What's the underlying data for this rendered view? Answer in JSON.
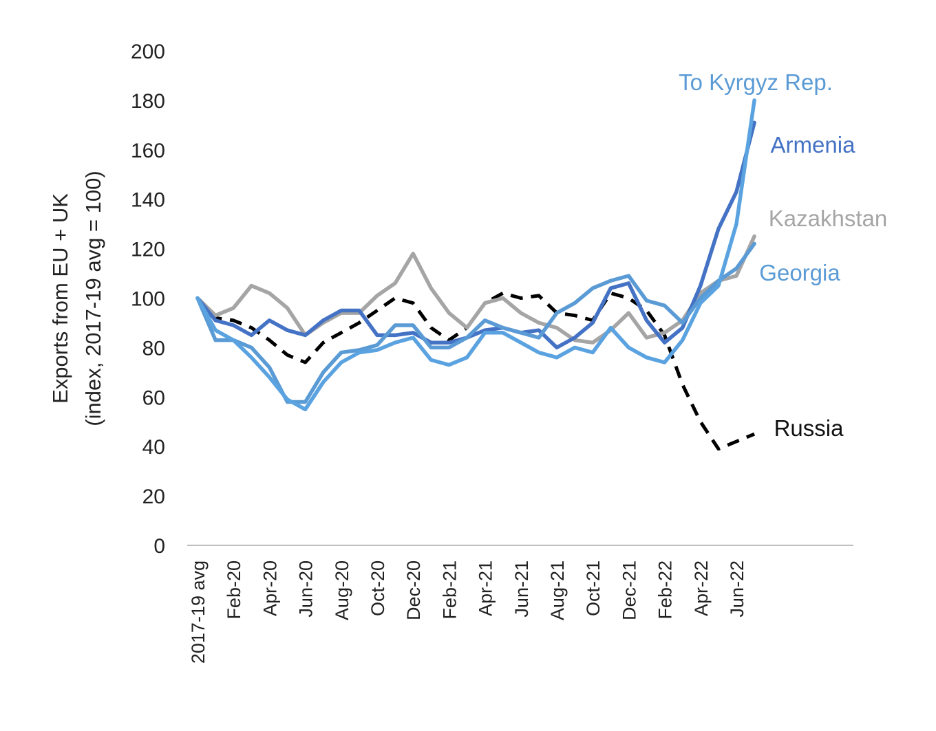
{
  "chart_data": {
    "type": "line",
    "ylabel_line1": "Exports from EU + UK",
    "ylabel_line2": "(index, 2017-19 avg = 100)",
    "ylim": [
      0,
      200
    ],
    "yticks": [
      0,
      20,
      40,
      60,
      80,
      100,
      120,
      140,
      160,
      180,
      200
    ],
    "categories": [
      "2017-19 avg",
      "Jan-20",
      "Feb-20",
      "Mar-20",
      "Apr-20",
      "May-20",
      "Jun-20",
      "Jul-20",
      "Aug-20",
      "Sep-20",
      "Oct-20",
      "Nov-20",
      "Dec-20",
      "Jan-21",
      "Feb-21",
      "Mar-21",
      "Apr-21",
      "May-21",
      "Jun-21",
      "Jul-21",
      "Aug-21",
      "Sep-21",
      "Oct-21",
      "Nov-21",
      "Dec-21",
      "Jan-22",
      "Feb-22",
      "Mar-22",
      "Apr-22",
      "May-22",
      "Jun-22",
      "Jul-22"
    ],
    "visible_tick_labels": [
      "2017-19 avg",
      "Feb-20",
      "Apr-20",
      "Jun-20",
      "Aug-20",
      "Oct-20",
      "Dec-20",
      "Feb-21",
      "Apr-21",
      "Jun-21",
      "Aug-21",
      "Oct-21",
      "Dec-21",
      "Feb-22",
      "Apr-22",
      "Jun-22"
    ],
    "grid": false,
    "legend": "inline labels at line ends",
    "series": [
      {
        "name": "Russia",
        "color": "#000000",
        "dashed": true,
        "values": [
          100,
          92,
          91,
          88,
          83,
          77,
          74,
          82,
          86,
          90,
          95,
          100,
          98,
          88,
          83,
          88,
          98,
          102,
          100,
          101,
          94,
          93,
          91,
          102,
          100,
          95,
          85,
          65,
          50,
          39,
          42,
          45
        ]
      },
      {
        "name": "Kazakhstan",
        "color": "#a5a5a5",
        "dashed": false,
        "values": [
          100,
          93,
          96,
          105,
          102,
          96,
          85,
          90,
          94,
          94,
          101,
          106,
          118,
          104,
          94,
          88,
          98,
          100,
          94,
          90,
          88,
          83,
          82,
          87,
          94,
          84,
          86,
          91,
          102,
          107,
          109,
          125
        ]
      },
      {
        "name": "Armenia",
        "color": "#4472c4",
        "dashed": false,
        "values": [
          100,
          91,
          89,
          85,
          91,
          87,
          85,
          91,
          95,
          95,
          85,
          85,
          86,
          82,
          82,
          84,
          87,
          88,
          86,
          87,
          80,
          84,
          90,
          104,
          106,
          91,
          82,
          88,
          105,
          128,
          143,
          171
        ]
      },
      {
        "name": "Georgia",
        "color": "#5b9bd5",
        "dashed": false,
        "values": [
          100,
          83,
          83,
          80,
          72,
          58,
          58,
          70,
          78,
          79,
          81,
          89,
          89,
          80,
          80,
          84,
          91,
          88,
          86,
          84,
          94,
          98,
          104,
          107,
          109,
          99,
          97,
          90,
          100,
          107,
          112,
          122
        ]
      },
      {
        "name": "To Kyrgyz Rep.",
        "color": "#5aa3e0",
        "dashed": false,
        "values": [
          100,
          87,
          83,
          76,
          68,
          59,
          55,
          66,
          74,
          78,
          79,
          82,
          84,
          75,
          73,
          76,
          86,
          86,
          82,
          78,
          76,
          80,
          78,
          88,
          80,
          76,
          74,
          83,
          98,
          105,
          130,
          180
        ]
      }
    ],
    "series_labels": [
      {
        "text": "To Kyrgyz Rep.",
        "color": "#5b9bd5"
      },
      {
        "text": "Armenia",
        "color": "#4472c4"
      },
      {
        "text": "Kazakhstan",
        "color": "#a5a5a5"
      },
      {
        "text": "Georgia",
        "color": "#5b9bd5"
      },
      {
        "text": "Russia",
        "color": "#111111"
      }
    ]
  }
}
